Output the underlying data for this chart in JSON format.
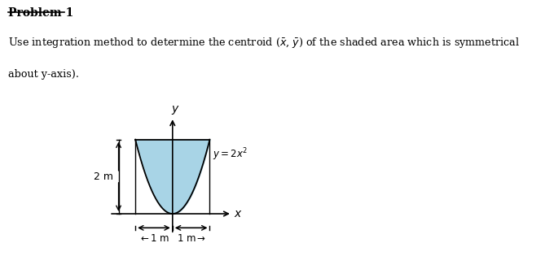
{
  "title": "Problem 1",
  "desc1": "Use integration method to determine the centroid (χ̅, ẏ̅) of the shaded area which is symmetrical",
  "desc2": "about y-axis).",
  "curve_label": "y = 2x^2",
  "x_label": "x",
  "y_label": "y",
  "dim_label_left": "2 m",
  "shaded_color": "#a8d4e6",
  "parabola_color": "#000000",
  "background_color": "#ffffff",
  "fig_width": 6.69,
  "fig_height": 3.15
}
